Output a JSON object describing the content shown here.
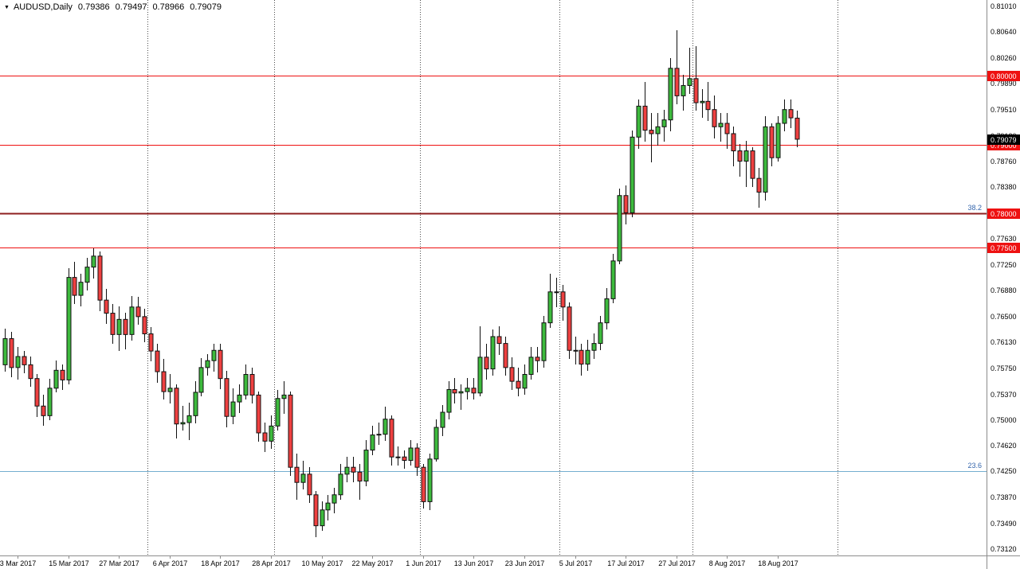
{
  "quote_bar": {
    "collapse_icon": "▼",
    "symbol_period": "AUDUSD,Daily",
    "open": "0.79386",
    "high": "0.79497",
    "low": "0.78966",
    "close": "0.79079"
  },
  "colors": {
    "background": "#ffffff",
    "axis_text": "#000000",
    "axis_line": "#8c8c8c",
    "separator": "#4d4d4d",
    "candle_up": "#3dba3d",
    "candle_down": "#ee4040",
    "candle_outline": "#101010",
    "level_line": "#ee1111",
    "fib_382_line": "#8e1f1f",
    "fib_236_line": "#74aed0",
    "fib_text": "#3566ad",
    "price_box_bg": "#ee1111",
    "price_box_text": "#ffffff",
    "current_price_box_bg": "#000000"
  },
  "chart_data": {
    "type": "candlestick",
    "title": "AUDUSD,Daily",
    "symbol": "AUDUSD",
    "timeframe": "Daily",
    "grid": "off",
    "last_bar_ohlc": {
      "open": 0.79386,
      "high": 0.79497,
      "low": 0.78966,
      "close": 0.79079
    },
    "current_price": "0.79079",
    "price_axis": {
      "p_top": 0.81103,
      "p_bottom": 0.73028,
      "labels": [
        "0.81010",
        "0.80640",
        "0.80260",
        "0.79890",
        "0.79510",
        "0.79130",
        "0.78760",
        "0.78380",
        "0.78010",
        "0.77630",
        "0.77250",
        "0.76880",
        "0.76500",
        "0.76130",
        "0.75750",
        "0.75370",
        "0.75000",
        "0.74620",
        "0.74250",
        "0.73870",
        "0.73490",
        "0.73120"
      ]
    },
    "time_axis": {
      "labels": [
        "3 Mar 2017",
        "15 Mar 2017",
        "27 Mar 2017",
        "6 Apr 2017",
        "18 Apr 2017",
        "28 Apr 2017",
        "10 May 2017",
        "22 May 2017",
        "1 Jun 2017",
        "13 Jun 2017",
        "23 Jun 2017",
        "5 Jul 2017",
        "17 Jul 2017",
        "27 Jul 2017",
        "8 Aug 2017",
        "18 Aug 2017"
      ],
      "label_indices": [
        2,
        10,
        18,
        26,
        34,
        42,
        50,
        58,
        66,
        74,
        82,
        90,
        98,
        106,
        114,
        122
      ],
      "separator_indices": [
        23,
        43,
        66,
        88,
        109,
        132
      ]
    },
    "levels": [
      {
        "price": 0.8,
        "box": "0.80000",
        "kind": "hline",
        "color": "#ee1111",
        "width": 1,
        "fib_label": null
      },
      {
        "price": 0.79,
        "box": "0.79000",
        "kind": "hline",
        "color": "#ee1111",
        "width": 1,
        "fib_label": null
      },
      {
        "price": 0.78,
        "box": "0.78000",
        "kind": "fib",
        "color": "#8e1f1f",
        "width": 2,
        "fib_label": "38.2"
      },
      {
        "price": 0.775,
        "box": "0.77500",
        "kind": "hline",
        "color": "#ee1111",
        "width": 1,
        "fib_label": null
      },
      {
        "price": 0.7425,
        "box": null,
        "kind": "fib",
        "color": "#74aed0",
        "width": 1,
        "fib_label": "23.6"
      }
    ],
    "candles": [
      [
        0.758,
        0.7633,
        0.757,
        0.7618
      ],
      [
        0.7618,
        0.7628,
        0.7562,
        0.7576
      ],
      [
        0.7576,
        0.7606,
        0.7558,
        0.7592
      ],
      [
        0.7592,
        0.76,
        0.7568,
        0.758
      ],
      [
        0.758,
        0.7592,
        0.7548,
        0.756
      ],
      [
        0.756,
        0.7566,
        0.7504,
        0.752
      ],
      [
        0.752,
        0.7536,
        0.7491,
        0.7506
      ],
      [
        0.7506,
        0.756,
        0.75,
        0.7546
      ],
      [
        0.7546,
        0.7586,
        0.754,
        0.7572
      ],
      [
        0.7572,
        0.7581,
        0.7544,
        0.7558
      ],
      [
        0.7558,
        0.772,
        0.7552,
        0.7707
      ],
      [
        0.7707,
        0.773,
        0.7668,
        0.7681
      ],
      [
        0.7681,
        0.7712,
        0.7665,
        0.77
      ],
      [
        0.77,
        0.7735,
        0.7688,
        0.7722
      ],
      [
        0.7722,
        0.7749,
        0.7705,
        0.7738
      ],
      [
        0.7738,
        0.7745,
        0.7658,
        0.7674
      ],
      [
        0.7674,
        0.769,
        0.764,
        0.7655
      ],
      [
        0.7655,
        0.7668,
        0.761,
        0.7624
      ],
      [
        0.7624,
        0.7665,
        0.76,
        0.7646
      ],
      [
        0.7646,
        0.7656,
        0.7603,
        0.7624
      ],
      [
        0.7624,
        0.768,
        0.7615,
        0.7664
      ],
      [
        0.7664,
        0.7679,
        0.7638,
        0.765
      ],
      [
        0.765,
        0.7661,
        0.7613,
        0.7625
      ],
      [
        0.7625,
        0.7635,
        0.7585,
        0.76
      ],
      [
        0.76,
        0.761,
        0.7554,
        0.757
      ],
      [
        0.757,
        0.7589,
        0.753,
        0.7541
      ],
      [
        0.7541,
        0.7566,
        0.7524,
        0.7546
      ],
      [
        0.7546,
        0.7551,
        0.7473,
        0.7494
      ],
      [
        0.7494,
        0.752,
        0.7484,
        0.7496
      ],
      [
        0.7496,
        0.7525,
        0.7471,
        0.7506
      ],
      [
        0.7506,
        0.7556,
        0.7495,
        0.754
      ],
      [
        0.754,
        0.759,
        0.7534,
        0.7576
      ],
      [
        0.7576,
        0.7596,
        0.7564,
        0.7586
      ],
      [
        0.7586,
        0.761,
        0.757,
        0.7601
      ],
      [
        0.7601,
        0.7611,
        0.7545,
        0.756
      ],
      [
        0.756,
        0.7571,
        0.7489,
        0.7505
      ],
      [
        0.7505,
        0.7546,
        0.7494,
        0.7526
      ],
      [
        0.7526,
        0.7551,
        0.751,
        0.7536
      ],
      [
        0.7536,
        0.758,
        0.7529,
        0.7566
      ],
      [
        0.7566,
        0.7576,
        0.7524,
        0.7536
      ],
      [
        0.7536,
        0.7541,
        0.7468,
        0.7481
      ],
      [
        0.7481,
        0.7496,
        0.7453,
        0.7469
      ],
      [
        0.7469,
        0.7506,
        0.7458,
        0.7491
      ],
      [
        0.7491,
        0.7544,
        0.7484,
        0.7531
      ],
      [
        0.7531,
        0.7556,
        0.7509,
        0.7536
      ],
      [
        0.7536,
        0.7541,
        0.7419,
        0.7431
      ],
      [
        0.7431,
        0.7451,
        0.7384,
        0.7409
      ],
      [
        0.7409,
        0.7441,
        0.7399,
        0.7421
      ],
      [
        0.7421,
        0.7431,
        0.7379,
        0.7391
      ],
      [
        0.7391,
        0.7396,
        0.7329,
        0.7346
      ],
      [
        0.7346,
        0.7381,
        0.7339,
        0.7369
      ],
      [
        0.7369,
        0.7391,
        0.7354,
        0.7379
      ],
      [
        0.7379,
        0.7401,
        0.7364,
        0.7391
      ],
      [
        0.7391,
        0.7436,
        0.7384,
        0.7421
      ],
      [
        0.7421,
        0.7446,
        0.7409,
        0.7431
      ],
      [
        0.7431,
        0.7446,
        0.7409,
        0.7424
      ],
      [
        0.7424,
        0.7436,
        0.7384,
        0.7411
      ],
      [
        0.7411,
        0.7471,
        0.7404,
        0.7456
      ],
      [
        0.7456,
        0.7491,
        0.7449,
        0.7478
      ],
      [
        0.7478,
        0.7496,
        0.7464,
        0.7479
      ],
      [
        0.7479,
        0.7519,
        0.7469,
        0.7501
      ],
      [
        0.7501,
        0.7506,
        0.7434,
        0.7446
      ],
      [
        0.7446,
        0.7461,
        0.7434,
        0.7446
      ],
      [
        0.7446,
        0.7456,
        0.7429,
        0.7441
      ],
      [
        0.7441,
        0.7471,
        0.7434,
        0.7459
      ],
      [
        0.7459,
        0.7466,
        0.7419,
        0.7431
      ],
      [
        0.7431,
        0.7436,
        0.7371,
        0.7381
      ],
      [
        0.7381,
        0.7451,
        0.7369,
        0.7443
      ],
      [
        0.7443,
        0.7501,
        0.7439,
        0.7489
      ],
      [
        0.7489,
        0.7521,
        0.7476,
        0.7511
      ],
      [
        0.7511,
        0.7556,
        0.7501,
        0.7544
      ],
      [
        0.7544,
        0.7561,
        0.7524,
        0.7539
      ],
      [
        0.7539,
        0.7551,
        0.7514,
        0.7541
      ],
      [
        0.7541,
        0.7561,
        0.7529,
        0.7546
      ],
      [
        0.7546,
        0.7561,
        0.7529,
        0.7539
      ],
      [
        0.7539,
        0.7636,
        0.7534,
        0.7591
      ],
      [
        0.7591,
        0.7611,
        0.7559,
        0.7574
      ],
      [
        0.7574,
        0.7631,
        0.7564,
        0.7621
      ],
      [
        0.7621,
        0.7636,
        0.7594,
        0.7611
      ],
      [
        0.7611,
        0.7621,
        0.7564,
        0.7576
      ],
      [
        0.7576,
        0.7591,
        0.7544,
        0.7556
      ],
      [
        0.7556,
        0.7576,
        0.7534,
        0.7546
      ],
      [
        0.7546,
        0.7581,
        0.7536,
        0.7566
      ],
      [
        0.7566,
        0.7606,
        0.7559,
        0.7591
      ],
      [
        0.7591,
        0.7606,
        0.7569,
        0.7586
      ],
      [
        0.7586,
        0.7651,
        0.7576,
        0.7641
      ],
      [
        0.7641,
        0.7712,
        0.7634,
        0.7686
      ],
      [
        0.7686,
        0.7706,
        0.7664,
        0.7686
      ],
      [
        0.7686,
        0.7696,
        0.7644,
        0.7664
      ],
      [
        0.7664,
        0.7671,
        0.7589,
        0.7601
      ],
      [
        0.7601,
        0.7621,
        0.7581,
        0.7601
      ],
      [
        0.7601,
        0.7611,
        0.7564,
        0.7581
      ],
      [
        0.7581,
        0.7616,
        0.7571,
        0.7601
      ],
      [
        0.7601,
        0.7626,
        0.7589,
        0.7611
      ],
      [
        0.7611,
        0.7651,
        0.7601,
        0.7641
      ],
      [
        0.7641,
        0.7691,
        0.7631,
        0.7676
      ],
      [
        0.7676,
        0.7741,
        0.7669,
        0.7731
      ],
      [
        0.7731,
        0.7836,
        0.7726,
        0.7826
      ],
      [
        0.7826,
        0.7841,
        0.7784,
        0.7801
      ],
      [
        0.7801,
        0.7921,
        0.7794,
        0.7911
      ],
      [
        0.7911,
        0.7966,
        0.7894,
        0.7956
      ],
      [
        0.7956,
        0.7991,
        0.7904,
        0.7921
      ],
      [
        0.7921,
        0.7946,
        0.7874,
        0.7916
      ],
      [
        0.7916,
        0.7946,
        0.7899,
        0.7926
      ],
      [
        0.7926,
        0.7951,
        0.7904,
        0.7936
      ],
      [
        0.7936,
        0.8026,
        0.7919,
        0.8011
      ],
      [
        0.8011,
        0.8066,
        0.7959,
        0.7971
      ],
      [
        0.7971,
        0.8001,
        0.7949,
        0.7986
      ],
      [
        0.7986,
        0.8041,
        0.7974,
        0.7996
      ],
      [
        0.7996,
        0.8043,
        0.7949,
        0.7961
      ],
      [
        0.7961,
        0.7981,
        0.7939,
        0.7963
      ],
      [
        0.7963,
        0.7991,
        0.7934,
        0.7951
      ],
      [
        0.7951,
        0.7971,
        0.7909,
        0.7926
      ],
      [
        0.7926,
        0.7946,
        0.7904,
        0.7931
      ],
      [
        0.7931,
        0.7946,
        0.7894,
        0.7916
      ],
      [
        0.7916,
        0.7926,
        0.7869,
        0.7891
      ],
      [
        0.7891,
        0.7901,
        0.7854,
        0.7876
      ],
      [
        0.7876,
        0.7906,
        0.7839,
        0.7891
      ],
      [
        0.7891,
        0.7896,
        0.7839,
        0.7851
      ],
      [
        0.7851,
        0.7866,
        0.7808,
        0.7831
      ],
      [
        0.7831,
        0.7941,
        0.7819,
        0.7926
      ],
      [
        0.7926,
        0.7931,
        0.7869,
        0.7881
      ],
      [
        0.7881,
        0.7941,
        0.7876,
        0.7931
      ],
      [
        0.7931,
        0.7966,
        0.7919,
        0.7951
      ],
      [
        0.7951,
        0.7966,
        0.7924,
        0.7939
      ],
      [
        0.79386,
        0.79497,
        0.78966,
        0.79079
      ]
    ]
  }
}
